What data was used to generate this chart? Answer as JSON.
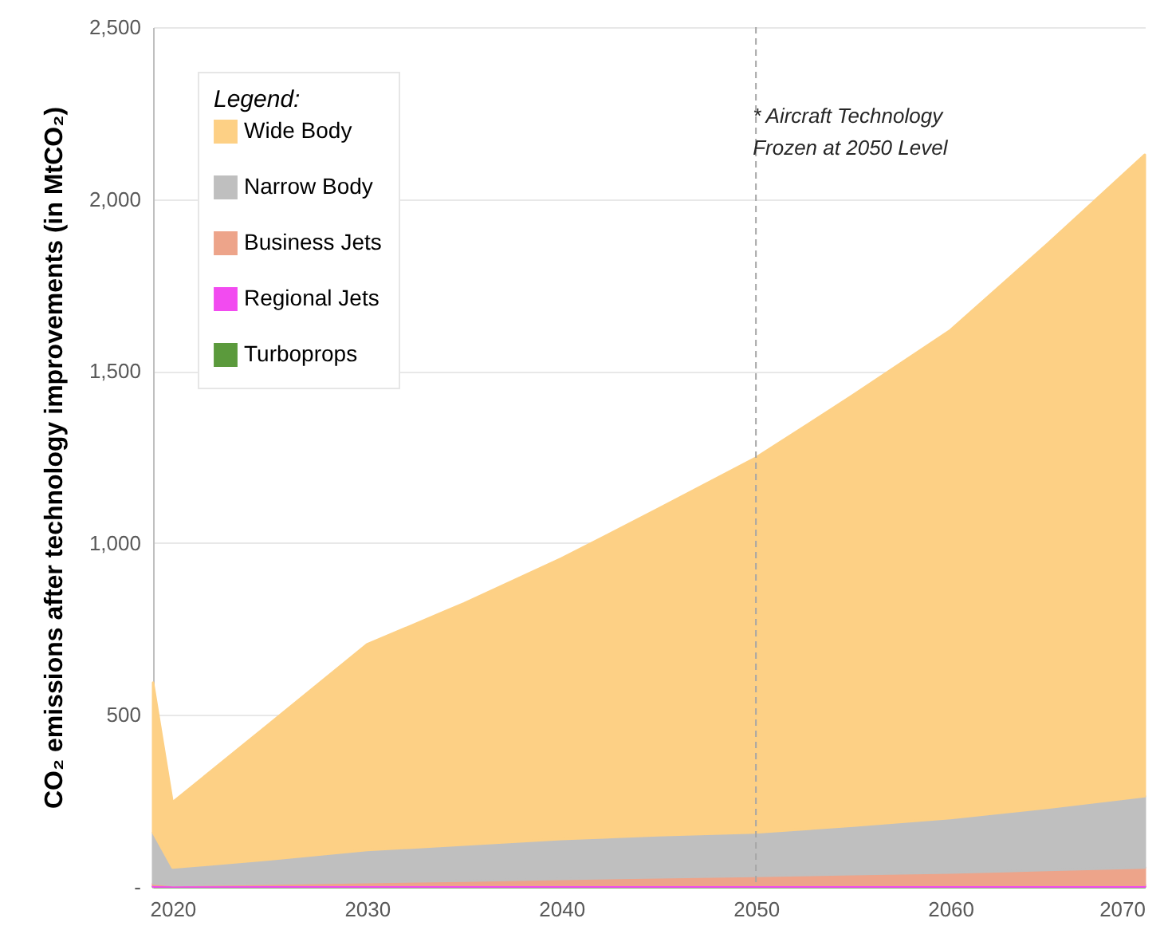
{
  "chart_data": {
    "type": "area",
    "stacked": true,
    "ylabel": "CO₂ emissions after technology improvements (in MtCO₂)",
    "legend_title": "Legend:",
    "x": [
      2019,
      2020,
      2025,
      2030,
      2035,
      2040,
      2045,
      2050,
      2055,
      2060,
      2065,
      2070
    ],
    "series": [
      {
        "name": "Turboprops",
        "color": "#5b9a3c",
        "values": [
          1,
          1,
          1,
          1,
          1,
          1,
          1,
          1,
          1,
          1,
          1,
          1
        ]
      },
      {
        "name": "Regional Jets",
        "color": "#f24bf0",
        "values": [
          5,
          4,
          5,
          5,
          5,
          5,
          5,
          5,
          5,
          5,
          5,
          5
        ]
      },
      {
        "name": "Business Jets",
        "color": "#eda48a",
        "values": [
          4,
          0,
          3,
          8,
          12,
          17,
          22,
          26,
          31,
          36,
          43,
          50
        ]
      },
      {
        "name": "Narrow Body",
        "color": "#bfbfbf",
        "values": [
          148,
          51,
          71,
          93,
          105,
          116,
          122,
          126,
          141,
          158,
          181,
          208
        ]
      },
      {
        "name": "Wide Body",
        "color": "#fdd085",
        "values": [
          436,
          190,
          395,
          598,
          702,
          816,
          950,
          1090,
          1252,
          1419,
          1640,
          1865
        ]
      }
    ],
    "xlim": [
      2019,
      2070
    ],
    "xticks": [
      2020,
      2030,
      2040,
      2050,
      2060,
      2070
    ],
    "ylim": [
      0,
      2500
    ],
    "yticks": [
      {
        "value": 0,
        "label": "-"
      },
      {
        "value": 500,
        "label": "500"
      },
      {
        "value": 1000,
        "label": "1,000"
      },
      {
        "value": 1500,
        "label": "1,500"
      },
      {
        "value": 2000,
        "label": "2,000"
      },
      {
        "value": 2500,
        "label": "2,500"
      }
    ],
    "grid": "y",
    "legend": "top left",
    "ref_lines": [
      {
        "axis": "x",
        "value": 2050,
        "label": "* Aircraft Technology\nFrozen at 2050 Level",
        "color": "#a6a6a6",
        "line_style": "dashed"
      }
    ]
  }
}
